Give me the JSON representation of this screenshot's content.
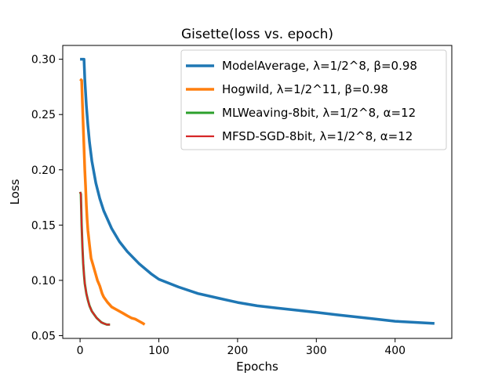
{
  "chart_data": {
    "type": "line",
    "title": "Gisette(loss vs. epoch)",
    "xlabel": "Epochs",
    "ylabel": "Loss",
    "xlim": [
      -22,
      472
    ],
    "ylim": [
      0.0475,
      0.3125
    ],
    "xticks": [
      0,
      100,
      200,
      300,
      400
    ],
    "yticks": [
      0.05,
      0.1,
      0.15,
      0.2,
      0.25,
      0.3
    ],
    "ytick_labels": [
      "0.05",
      "0.10",
      "0.15",
      "0.20",
      "0.25",
      "0.30"
    ],
    "grid": false,
    "legend_position": "top-right",
    "series": [
      {
        "name": "ModelAverage, λ=1/2^8, β=0.98",
        "color": "#1f77b4",
        "points": [
          [
            0,
            0.3
          ],
          [
            5,
            0.3
          ],
          [
            6,
            0.282
          ],
          [
            8,
            0.258
          ],
          [
            10,
            0.24
          ],
          [
            12,
            0.225
          ],
          [
            15,
            0.208
          ],
          [
            20,
            0.188
          ],
          [
            25,
            0.174
          ],
          [
            30,
            0.163
          ],
          [
            40,
            0.147
          ],
          [
            50,
            0.135
          ],
          [
            60,
            0.126
          ],
          [
            75,
            0.115
          ],
          [
            90,
            0.106
          ],
          [
            100,
            0.101
          ],
          [
            125,
            0.094
          ],
          [
            150,
            0.088
          ],
          [
            175,
            0.084
          ],
          [
            200,
            0.08
          ],
          [
            225,
            0.077
          ],
          [
            250,
            0.075
          ],
          [
            275,
            0.073
          ],
          [
            300,
            0.071
          ],
          [
            325,
            0.069
          ],
          [
            350,
            0.067
          ],
          [
            375,
            0.065
          ],
          [
            400,
            0.063
          ],
          [
            425,
            0.062
          ],
          [
            450,
            0.061
          ]
        ]
      },
      {
        "name": "Hogwild, λ=1/2^11, β=0.98",
        "color": "#ff7f0e",
        "points": [
          [
            0,
            0.282
          ],
          [
            2,
            0.281
          ],
          [
            3,
            0.26
          ],
          [
            4,
            0.24
          ],
          [
            5,
            0.22
          ],
          [
            6,
            0.2
          ],
          [
            7,
            0.185
          ],
          [
            8,
            0.168
          ],
          [
            9,
            0.155
          ],
          [
            10,
            0.145
          ],
          [
            12,
            0.132
          ],
          [
            14,
            0.12
          ],
          [
            16,
            0.115
          ],
          [
            18,
            0.11
          ],
          [
            20,
            0.105
          ],
          [
            22,
            0.1
          ],
          [
            25,
            0.095
          ],
          [
            28,
            0.088
          ],
          [
            30,
            0.085
          ],
          [
            35,
            0.08
          ],
          [
            40,
            0.076
          ],
          [
            45,
            0.074
          ],
          [
            50,
            0.072
          ],
          [
            55,
            0.07
          ],
          [
            60,
            0.068
          ],
          [
            65,
            0.066
          ],
          [
            70,
            0.065
          ],
          [
            75,
            0.063
          ],
          [
            80,
            0.061
          ],
          [
            82,
            0.06
          ]
        ]
      },
      {
        "name": "MLWeaving-8bit, λ=1/2^8, α=12",
        "color": "#2ca02c",
        "points": [
          [
            0,
            0.18
          ],
          [
            1,
            0.178
          ],
          [
            2,
            0.15
          ],
          [
            3,
            0.13
          ],
          [
            4,
            0.115
          ],
          [
            5,
            0.105
          ],
          [
            6,
            0.097
          ],
          [
            8,
            0.088
          ],
          [
            10,
            0.082
          ],
          [
            12,
            0.077
          ],
          [
            15,
            0.072
          ],
          [
            18,
            0.069
          ],
          [
            21,
            0.066
          ],
          [
            24,
            0.064
          ],
          [
            27,
            0.062
          ],
          [
            30,
            0.061
          ],
          [
            34,
            0.06
          ],
          [
            38,
            0.06
          ]
        ]
      },
      {
        "name": "MFSD-SGD-8bit, λ=1/2^8, α=12",
        "color": "#d62728",
        "points": [
          [
            0,
            0.18
          ],
          [
            1,
            0.178
          ],
          [
            2,
            0.15
          ],
          [
            3,
            0.13
          ],
          [
            4,
            0.115
          ],
          [
            5,
            0.105
          ],
          [
            6,
            0.097
          ],
          [
            8,
            0.088
          ],
          [
            10,
            0.082
          ],
          [
            12,
            0.077
          ],
          [
            15,
            0.072
          ],
          [
            18,
            0.069
          ],
          [
            21,
            0.066
          ],
          [
            24,
            0.064
          ],
          [
            27,
            0.062
          ],
          [
            30,
            0.061
          ],
          [
            34,
            0.06
          ],
          [
            38,
            0.06
          ]
        ]
      }
    ]
  }
}
